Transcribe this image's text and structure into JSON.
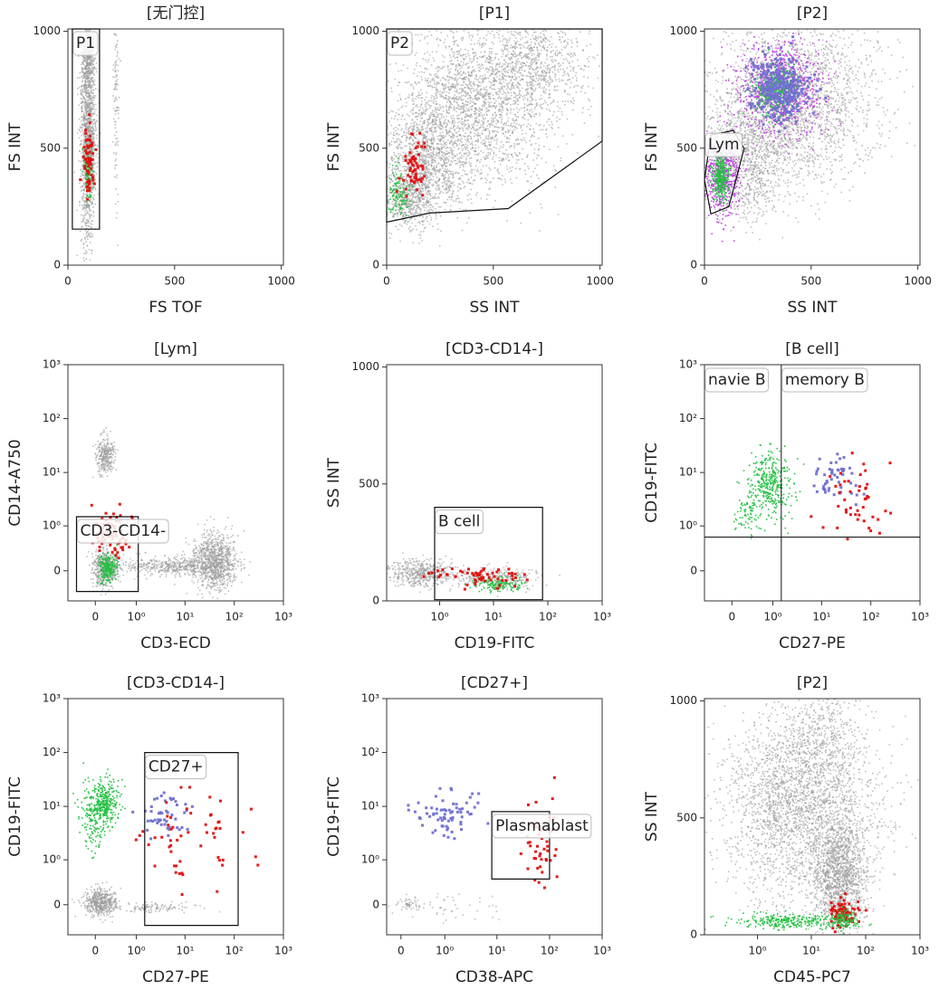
{
  "chart_data": [
    {
      "type": "scatter",
      "title": "[无门控]",
      "x_label": "FS TOF",
      "y_label": "FS INT",
      "xscale": "linear",
      "yscale": "linear",
      "xlim": [
        0,
        1010
      ],
      "ylim": [
        0,
        1010
      ],
      "xticks": [
        0,
        500,
        1000
      ],
      "yticks": [
        0,
        500,
        1000
      ],
      "gates": [
        {
          "label": "P1",
          "x": [
            21,
            148,
            148,
            21
          ],
          "y": [
            154,
            154,
            1010,
            1010
          ]
        }
      ]
    },
    {
      "type": "scatter",
      "title": "[P1]",
      "x_label": "SS INT",
      "y_label": "FS INT",
      "xscale": "linear",
      "yscale": "linear",
      "xlim": [
        0,
        1010
      ],
      "ylim": [
        0,
        1010
      ],
      "xticks": [
        0,
        500,
        1000
      ],
      "yticks": [
        0,
        500,
        1000
      ],
      "gates": [
        {
          "label": "P2",
          "x": [
            0,
            1010,
            1010,
            570,
            203,
            0
          ],
          "y": [
            1010,
            1010,
            530,
            242,
            223,
            184
          ]
        }
      ]
    },
    {
      "type": "scatter",
      "title": "[P2]",
      "x_label": "SS INT",
      "y_label": "FS INT",
      "xscale": "linear",
      "yscale": "linear",
      "xlim": [
        0,
        1010
      ],
      "ylim": [
        0,
        1010
      ],
      "xticks": [
        0,
        500,
        1000
      ],
      "yticks": [
        0,
        500,
        1000
      ],
      "gates": [
        {
          "label": "Lym",
          "x": [
            30,
            135,
            186,
            114,
            30,
            0
          ],
          "y": [
            557,
            576,
            499,
            250,
            219,
            365
          ]
        }
      ]
    },
    {
      "type": "scatter",
      "title": "[Lym]",
      "x_label": "CD3-ECD",
      "y_label": "CD14-A750",
      "xscale": "biexp",
      "yscale": "biexp",
      "xlim": [
        -0.5,
        1000
      ],
      "ylim": [
        -0.5,
        1000
      ],
      "xticks": [
        0,
        {
          "value": 1,
          "label": "10⁰"
        },
        {
          "value": 10,
          "label": "10¹"
        },
        {
          "value": 100,
          "label": "10²"
        },
        {
          "value": 1000,
          "label": "10³"
        }
      ],
      "yticks": [
        0,
        {
          "value": 1,
          "label": "10⁰"
        },
        {
          "value": 10,
          "label": "10¹"
        },
        {
          "value": 100,
          "label": "10²"
        },
        {
          "value": 1000,
          "label": "10³"
        }
      ],
      "gates": [
        {
          "label": "CD3-CD14-",
          "x": [
            -0.3,
            1.1,
            1.1,
            -0.3
          ],
          "y": [
            -0.3,
            -0.3,
            1.5,
            1.5
          ]
        }
      ]
    },
    {
      "type": "scatter",
      "title": "[CD3-CD14-]",
      "x_label": "CD19-FITC",
      "y_label": "SS INT",
      "xscale": "biexp",
      "yscale": "linear",
      "xlim": [
        -0.1,
        1000
      ],
      "ylim": [
        0,
        1010
      ],
      "xticks": [
        {
          "value": 1,
          "label": "10⁰"
        },
        {
          "value": 10,
          "label": "10¹"
        },
        {
          "value": 100,
          "label": "10²"
        },
        {
          "value": 1000,
          "label": "10³"
        }
      ],
      "yticks": [
        0,
        500,
        1000
      ],
      "gates": [
        {
          "label": "B cell",
          "x": [
            0.8,
            80,
            80,
            0.8
          ],
          "y": [
            5,
            5,
            400,
            400
          ]
        }
      ]
    },
    {
      "type": "scatter",
      "title": "[B cell]",
      "x_label": "CD27-PE",
      "y_label": "CD19-FITC",
      "xscale": "biexp",
      "yscale": "biexp",
      "xlim": [
        -0.5,
        1000
      ],
      "ylim": [
        -0.5,
        1000
      ],
      "xticks": [
        0,
        {
          "value": 1,
          "label": "10⁰"
        },
        {
          "value": 10,
          "label": "10¹"
        },
        {
          "value": 100,
          "label": "10²"
        },
        {
          "value": 1000,
          "label": "10³"
        }
      ],
      "yticks": [
        0,
        {
          "value": 1,
          "label": "10⁰"
        },
        {
          "value": 10,
          "label": "10¹"
        },
        {
          "value": 100,
          "label": "10²"
        },
        {
          "value": 1000,
          "label": "10³"
        }
      ],
      "quadrant": {
        "x": 1.5,
        "y": 0.6,
        "labels": [
          "navie B",
          "memory B"
        ]
      }
    },
    {
      "type": "scatter",
      "title": "[CD3-CD14-]",
      "x_label": "CD27-PE",
      "y_label": "CD19-FITC",
      "xscale": "biexp",
      "yscale": "biexp",
      "xlim": [
        -0.5,
        1000
      ],
      "ylim": [
        -0.5,
        1000
      ],
      "xticks": [
        0,
        {
          "value": 1,
          "label": "10⁰"
        },
        {
          "value": 10,
          "label": "10¹"
        },
        {
          "value": 100,
          "label": "10²"
        },
        {
          "value": 1000,
          "label": "10³"
        }
      ],
      "yticks": [
        0,
        {
          "value": 1,
          "label": "10⁰"
        },
        {
          "value": 10,
          "label": "10¹"
        },
        {
          "value": 100,
          "label": "10²"
        },
        {
          "value": 1000,
          "label": "10³"
        }
      ],
      "gates": [
        {
          "label": "CD27+",
          "x": [
            1.5,
            120,
            120,
            1.5
          ],
          "y": [
            -0.3,
            -0.3,
            100,
            100
          ]
        }
      ]
    },
    {
      "type": "scatter",
      "title": "[CD27+]",
      "x_label": "CD38-APC",
      "y_label": "CD19-FITC",
      "xscale": "biexp",
      "yscale": "biexp",
      "xlim": [
        -0.2,
        1000
      ],
      "ylim": [
        -0.5,
        1000
      ],
      "xticks": [
        0,
        {
          "value": 1,
          "label": "10⁰"
        },
        {
          "value": 10,
          "label": "10¹"
        },
        {
          "value": 100,
          "label": "10²"
        },
        {
          "value": 1000,
          "label": "10³"
        }
      ],
      "yticks": [
        0,
        {
          "value": 1,
          "label": "10⁰"
        },
        {
          "value": 10,
          "label": "10¹"
        },
        {
          "value": 100,
          "label": "10²"
        },
        {
          "value": 1000,
          "label": "10³"
        }
      ],
      "gates": [
        {
          "label": "Plasmablast",
          "x": [
            8,
            100,
            100,
            8
          ],
          "y": [
            0.4,
            0.4,
            8,
            8
          ]
        }
      ]
    },
    {
      "type": "scatter",
      "title": "[P2]",
      "x_label": "CD45-PC7",
      "y_label": "SS INT",
      "xscale": "biexp",
      "yscale": "linear",
      "xlim": [
        -0.1,
        1000
      ],
      "ylim": [
        0,
        1010
      ],
      "xticks": [
        {
          "value": 1,
          "label": "10⁰"
        },
        {
          "value": 10,
          "label": "10¹"
        },
        {
          "value": 100,
          "label": "10²"
        },
        {
          "value": 1000,
          "label": "10³"
        }
      ],
      "yticks": [
        0,
        500,
        1000
      ]
    }
  ]
}
